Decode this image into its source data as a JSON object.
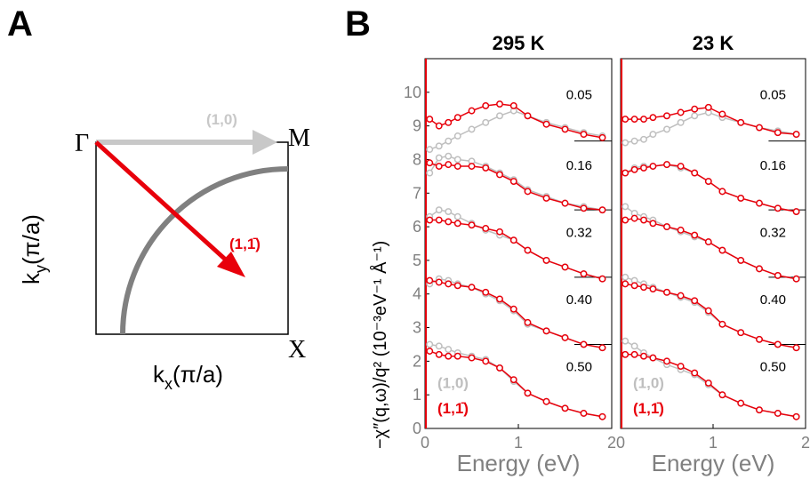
{
  "panel_a": {
    "letter": "A",
    "corner_gamma": "Γ",
    "corner_m": "M",
    "corner_x": "X",
    "arrow_10_label": "(1,0)",
    "arrow_11_label": "(1,1̄)",
    "xlabel_main": "k",
    "xlabel_sub": "x",
    "xlabel_rest": "(π/a)",
    "ylabel_main": "k",
    "ylabel_sub": "y",
    "ylabel_rest": "(π/a)"
  },
  "panel_b": {
    "letter": "B",
    "ylabel": "−χ″(q,ω)/q² (10⁻³eV⁻¹ Å⁻¹)",
    "legend_10": "(1,0)",
    "legend_11": "(1,1̄)"
  },
  "colors": {
    "red": "#e8000b",
    "gray": "#bfbfbf",
    "darkgray": "#808080",
    "grayarrow": "#c8c8c8"
  },
  "chart_data": [
    {
      "type": "scatter",
      "title": "295 K",
      "xlabel": "Energy (eV)",
      "xlim": [
        0,
        2
      ],
      "ylim": [
        0,
        11
      ],
      "xticks": [
        "0",
        "1",
        "2"
      ],
      "yticks": [
        "0",
        "1",
        "2",
        "3",
        "4",
        "5",
        "6",
        "7",
        "8",
        "9",
        "10"
      ],
      "q_labels": [
        "0.05",
        "0.16",
        "0.32",
        "0.40",
        "0.50"
      ],
      "series": [
        {
          "name": "(1,0)",
          "color": "#bfbfbf",
          "x": [
            0.05,
            0.15,
            0.25,
            0.35,
            0.5,
            0.65,
            0.8,
            0.95,
            1.1,
            1.3,
            1.5,
            1.7,
            1.9
          ],
          "curves": [
            [
              8.3,
              8.4,
              8.55,
              8.7,
              8.9,
              9.1,
              9.3,
              9.45,
              9.3,
              9.1,
              8.95,
              8.8,
              8.7
            ],
            [
              7.6,
              8.05,
              8.1,
              8.0,
              7.95,
              7.8,
              7.6,
              7.4,
              7.1,
              6.9,
              6.7,
              6.6,
              6.5
            ],
            [
              6.3,
              6.5,
              6.45,
              6.3,
              6.1,
              5.9,
              5.75,
              5.6,
              5.3,
              5.0,
              4.8,
              4.6,
              4.45
            ],
            [
              4.3,
              4.45,
              4.4,
              4.3,
              4.2,
              4.0,
              3.8,
              3.5,
              3.1,
              2.9,
              2.7,
              2.5,
              2.4
            ],
            [
              2.5,
              2.45,
              2.35,
              2.25,
              2.15,
              2.05,
              1.8,
              1.4,
              1.05,
              0.8,
              0.6,
              0.45,
              0.35
            ]
          ]
        },
        {
          "name": "(1,1̄)",
          "color": "#e8000b",
          "x": [
            0.05,
            0.15,
            0.25,
            0.35,
            0.5,
            0.65,
            0.8,
            0.95,
            1.1,
            1.3,
            1.5,
            1.7,
            1.9
          ],
          "curves": [
            [
              9.2,
              9.0,
              9.1,
              9.25,
              9.45,
              9.6,
              9.65,
              9.6,
              9.3,
              9.05,
              8.9,
              8.75,
              8.65
            ],
            [
              7.9,
              7.8,
              7.85,
              7.8,
              7.8,
              7.75,
              7.55,
              7.35,
              7.05,
              6.85,
              6.7,
              6.55,
              6.5
            ],
            [
              6.2,
              6.2,
              6.15,
              6.1,
              6.05,
              5.95,
              5.85,
              5.6,
              5.3,
              5.0,
              4.8,
              4.6,
              4.45
            ],
            [
              4.4,
              4.35,
              4.3,
              4.25,
              4.2,
              4.05,
              3.85,
              3.55,
              3.15,
              2.9,
              2.7,
              2.5,
              2.4
            ],
            [
              2.3,
              2.2,
              2.15,
              2.15,
              2.1,
              2.0,
              1.8,
              1.45,
              1.05,
              0.8,
              0.6,
              0.45,
              0.35
            ]
          ]
        }
      ]
    },
    {
      "type": "scatter",
      "title": "23 K",
      "xlabel": "Energy (eV)",
      "xlim": [
        0,
        2
      ],
      "ylim": [
        0,
        11
      ],
      "xticks": [
        "0",
        "1",
        "2"
      ],
      "q_labels": [
        "0.05",
        "0.16",
        "0.32",
        "0.40",
        "0.50"
      ],
      "series": [
        {
          "name": "(1,0)",
          "color": "#bfbfbf",
          "x": [
            0.05,
            0.15,
            0.25,
            0.35,
            0.5,
            0.65,
            0.8,
            0.95,
            1.1,
            1.3,
            1.5,
            1.7,
            1.9
          ],
          "curves": [
            [
              8.5,
              8.55,
              8.6,
              8.75,
              8.9,
              9.1,
              9.3,
              9.4,
              9.25,
              9.1,
              8.95,
              8.85,
              8.75
            ],
            [
              7.6,
              7.75,
              7.8,
              7.8,
              7.85,
              7.75,
              7.6,
              7.35,
              7.05,
              6.85,
              6.7,
              6.55,
              6.45
            ],
            [
              6.6,
              6.4,
              6.3,
              6.2,
              6.0,
              5.85,
              5.7,
              5.55,
              5.3,
              5.0,
              4.75,
              4.55,
              4.45
            ],
            [
              4.5,
              4.4,
              4.3,
              4.2,
              4.05,
              3.9,
              3.75,
              3.45,
              3.1,
              2.85,
              2.65,
              2.5,
              2.4
            ],
            [
              2.6,
              2.45,
              2.25,
              2.1,
              1.9,
              1.75,
              1.6,
              1.3,
              1.0,
              0.75,
              0.55,
              0.45,
              0.35
            ]
          ]
        },
        {
          "name": "(1,1̄)",
          "color": "#e8000b",
          "x": [
            0.05,
            0.15,
            0.25,
            0.35,
            0.5,
            0.65,
            0.8,
            0.95,
            1.1,
            1.3,
            1.5,
            1.7,
            1.9
          ],
          "curves": [
            [
              9.2,
              9.2,
              9.2,
              9.25,
              9.3,
              9.4,
              9.5,
              9.55,
              9.35,
              9.1,
              8.95,
              8.8,
              8.75
            ],
            [
              7.6,
              7.7,
              7.75,
              7.8,
              7.85,
              7.8,
              7.6,
              7.35,
              7.05,
              6.85,
              6.7,
              6.55,
              6.45
            ],
            [
              6.2,
              6.25,
              6.2,
              6.1,
              6.0,
              5.9,
              5.75,
              5.55,
              5.3,
              5.0,
              4.75,
              4.55,
              4.45
            ],
            [
              4.3,
              4.25,
              4.2,
              4.15,
              4.05,
              3.95,
              3.8,
              3.5,
              3.1,
              2.85,
              2.65,
              2.5,
              2.4
            ],
            [
              2.2,
              2.2,
              2.15,
              2.1,
              2.0,
              1.85,
              1.65,
              1.35,
              1.0,
              0.75,
              0.55,
              0.45,
              0.35
            ]
          ]
        }
      ]
    }
  ]
}
